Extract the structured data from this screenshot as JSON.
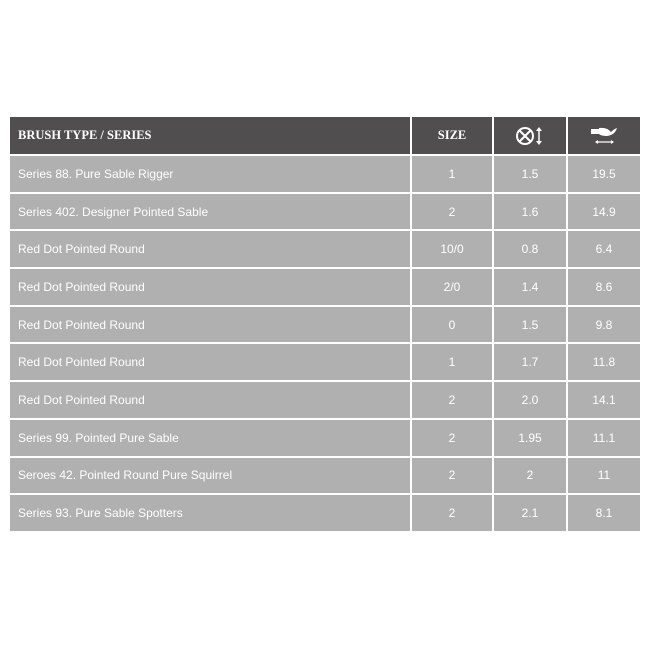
{
  "table": {
    "headers": {
      "brush_type": "BRUSH TYPE / SERIES",
      "size": "SIZE",
      "diameter_icon": "diameter-icon",
      "length_icon": "brush-length-icon"
    },
    "rows": [
      {
        "name": "Series 88. Pure Sable Rigger",
        "size": "1",
        "diameter": "1.5",
        "length": "19.5"
      },
      {
        "name": "Series 402. Designer Pointed Sable",
        "size": "2",
        "diameter": "1.6",
        "length": "14.9"
      },
      {
        "name": "Red Dot Pointed Round",
        "size": "10/0",
        "diameter": "0.8",
        "length": "6.4"
      },
      {
        "name": "Red Dot Pointed Round",
        "size": "2/0",
        "diameter": "1.4",
        "length": "8.6"
      },
      {
        "name": "Red Dot Pointed Round",
        "size": "0",
        "diameter": "1.5",
        "length": "9.8"
      },
      {
        "name": "Red Dot Pointed Round",
        "size": "1",
        "diameter": "1.7",
        "length": "11.8"
      },
      {
        "name": "Red Dot Pointed Round",
        "size": "2",
        "diameter": "2.0",
        "length": "14.1"
      },
      {
        "name": "Series 99. Pointed Pure Sable",
        "size": "2",
        "diameter": "1.95",
        "length": "11.1"
      },
      {
        "name": "Seroes 42. Pointed Round Pure Squirrel",
        "size": "2",
        "diameter": "2",
        "length": "11"
      },
      {
        "name": "Series 93. Pure Sable Spotters",
        "size": "2",
        "diameter": "2.1",
        "length": "8.1"
      }
    ]
  },
  "colors": {
    "header_bg": "#504e4e",
    "row_bg": "#b0b0b0",
    "text": "#ffffff"
  }
}
